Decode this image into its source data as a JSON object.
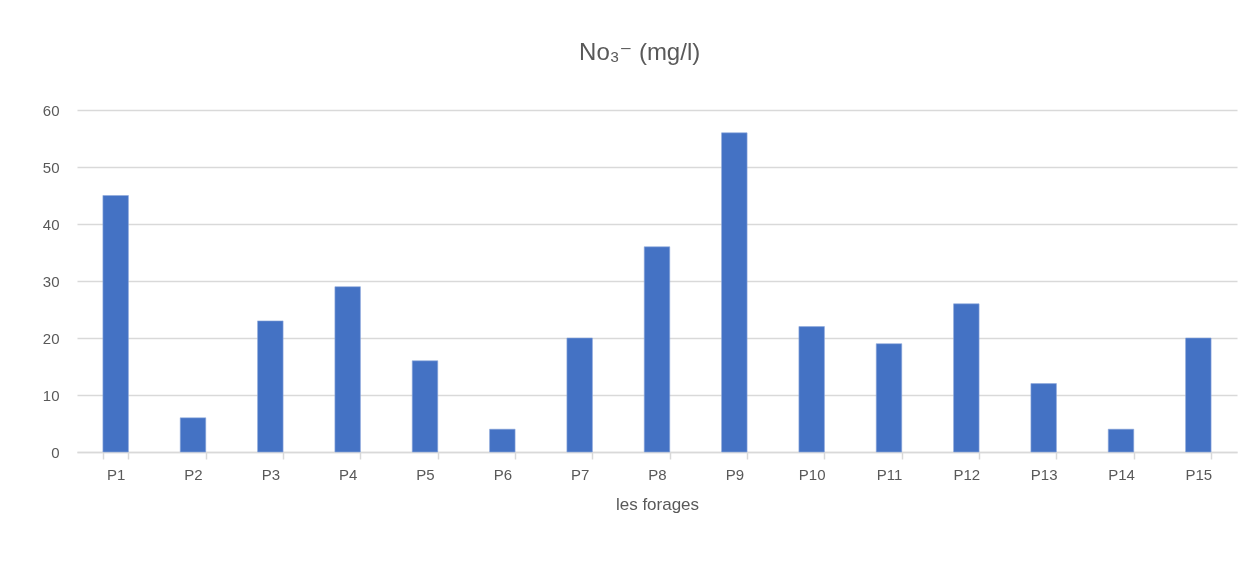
{
  "chart_data": {
    "type": "bar",
    "title": "No₃⁻ (mg/l)",
    "xlabel": "les forages",
    "categories": [
      "P1",
      "P2",
      "P3",
      "P4",
      "P5",
      "P6",
      "P7",
      "P8",
      "P9",
      "P10",
      "P11",
      "P12",
      "P13",
      "P14",
      "P15"
    ],
    "values": [
      45,
      6,
      23,
      29,
      16,
      4,
      20,
      36,
      56,
      22,
      19,
      26,
      12,
      4,
      20
    ],
    "color": "#4472c4",
    "ylim": [
      0,
      60
    ],
    "yticks": [
      0,
      10,
      20,
      30,
      40,
      50,
      60
    ],
    "grid": "y"
  }
}
